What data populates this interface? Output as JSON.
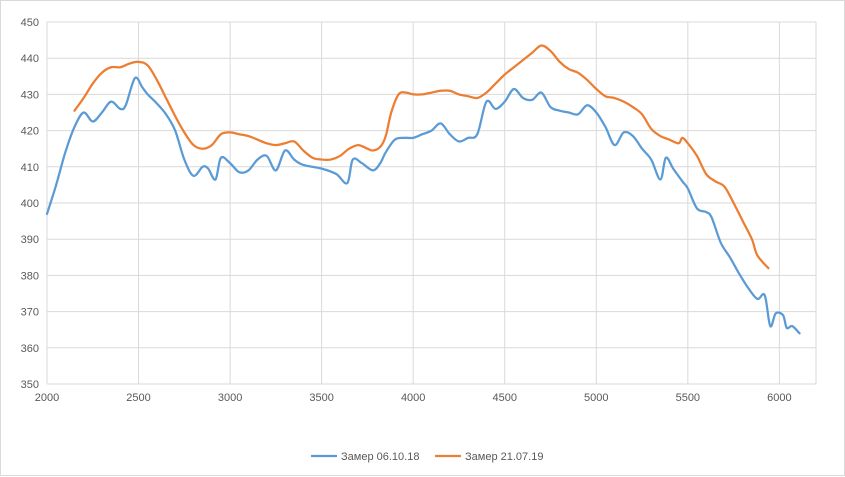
{
  "chart_data": {
    "type": "line",
    "title": "",
    "xlabel": "",
    "ylabel": "",
    "xlim": [
      2000,
      6200
    ],
    "ylim": [
      350,
      450
    ],
    "x_ticks": [
      2000,
      2500,
      3000,
      3500,
      4000,
      4500,
      5000,
      5500,
      6000
    ],
    "y_ticks": [
      350,
      360,
      370,
      380,
      390,
      400,
      410,
      420,
      430,
      440,
      450
    ],
    "grid": "vertical and horizontal",
    "legend_position": "bottom",
    "series": [
      {
        "name": "Замер 06.10.18",
        "color": "#5b9bd5",
        "points": [
          [
            2000,
            397
          ],
          [
            2050,
            405
          ],
          [
            2100,
            414
          ],
          [
            2150,
            421
          ],
          [
            2200,
            425
          ],
          [
            2250,
            422.5
          ],
          [
            2300,
            425
          ],
          [
            2350,
            428
          ],
          [
            2400,
            426
          ],
          [
            2430,
            427
          ],
          [
            2480,
            434.5
          ],
          [
            2520,
            432
          ],
          [
            2550,
            430
          ],
          [
            2600,
            427.5
          ],
          [
            2650,
            424.5
          ],
          [
            2700,
            420
          ],
          [
            2750,
            412
          ],
          [
            2800,
            407.5
          ],
          [
            2850,
            410
          ],
          [
            2880,
            409.5
          ],
          [
            2920,
            406.5
          ],
          [
            2950,
            412.5
          ],
          [
            3000,
            411
          ],
          [
            3050,
            408.5
          ],
          [
            3100,
            409
          ],
          [
            3150,
            412
          ],
          [
            3200,
            413
          ],
          [
            3250,
            409
          ],
          [
            3300,
            414.5
          ],
          [
            3350,
            412
          ],
          [
            3400,
            410.5
          ],
          [
            3500,
            409.5
          ],
          [
            3580,
            408
          ],
          [
            3640,
            405.5
          ],
          [
            3670,
            412
          ],
          [
            3720,
            411
          ],
          [
            3780,
            409
          ],
          [
            3820,
            411
          ],
          [
            3850,
            414
          ],
          [
            3900,
            417.5
          ],
          [
            3950,
            418
          ],
          [
            4000,
            418
          ],
          [
            4050,
            419
          ],
          [
            4100,
            420
          ],
          [
            4150,
            422
          ],
          [
            4200,
            419
          ],
          [
            4250,
            417
          ],
          [
            4300,
            418
          ],
          [
            4350,
            419
          ],
          [
            4400,
            428
          ],
          [
            4450,
            426
          ],
          [
            4500,
            428
          ],
          [
            4550,
            431.5
          ],
          [
            4600,
            429
          ],
          [
            4650,
            428.5
          ],
          [
            4700,
            430.5
          ],
          [
            4750,
            426.5
          ],
          [
            4800,
            425.5
          ],
          [
            4850,
            425
          ],
          [
            4900,
            424.5
          ],
          [
            4950,
            427
          ],
          [
            5000,
            425
          ],
          [
            5050,
            421
          ],
          [
            5100,
            416
          ],
          [
            5150,
            419.5
          ],
          [
            5200,
            418.5
          ],
          [
            5250,
            415
          ],
          [
            5300,
            412
          ],
          [
            5350,
            406.5
          ],
          [
            5380,
            412.5
          ],
          [
            5420,
            409.5
          ],
          [
            5470,
            406
          ],
          [
            5500,
            404
          ],
          [
            5550,
            398.5
          ],
          [
            5600,
            397.5
          ],
          [
            5630,
            396
          ],
          [
            5680,
            389
          ],
          [
            5730,
            385
          ],
          [
            5780,
            380.5
          ],
          [
            5830,
            376.5
          ],
          [
            5880,
            373.5
          ],
          [
            5920,
            374.5
          ],
          [
            5950,
            366
          ],
          [
            5980,
            369.5
          ],
          [
            6020,
            369
          ],
          [
            6040,
            365.5
          ],
          [
            6070,
            366
          ],
          [
            6110,
            364
          ]
        ]
      },
      {
        "name": "Замер 21.07.19",
        "color": "#ed7d31",
        "points": [
          [
            2150,
            425.5
          ],
          [
            2200,
            429
          ],
          [
            2250,
            433
          ],
          [
            2300,
            436
          ],
          [
            2350,
            437.5
          ],
          [
            2400,
            437.5
          ],
          [
            2450,
            438.5
          ],
          [
            2500,
            439
          ],
          [
            2550,
            438
          ],
          [
            2600,
            434
          ],
          [
            2650,
            429
          ],
          [
            2700,
            424
          ],
          [
            2750,
            419.5
          ],
          [
            2800,
            416
          ],
          [
            2850,
            415
          ],
          [
            2900,
            416
          ],
          [
            2950,
            419
          ],
          [
            3000,
            419.5
          ],
          [
            3050,
            419
          ],
          [
            3100,
            418.5
          ],
          [
            3150,
            417.5
          ],
          [
            3200,
            416.5
          ],
          [
            3250,
            416
          ],
          [
            3300,
            416.5
          ],
          [
            3350,
            417
          ],
          [
            3400,
            414.5
          ],
          [
            3450,
            412.5
          ],
          [
            3500,
            412
          ],
          [
            3550,
            412
          ],
          [
            3600,
            413
          ],
          [
            3650,
            415
          ],
          [
            3700,
            416
          ],
          [
            3750,
            415
          ],
          [
            3780,
            414.5
          ],
          [
            3820,
            415.5
          ],
          [
            3850,
            418.5
          ],
          [
            3880,
            425
          ],
          [
            3920,
            430
          ],
          [
            3960,
            430.5
          ],
          [
            4000,
            430
          ],
          [
            4050,
            430
          ],
          [
            4100,
            430.5
          ],
          [
            4150,
            431
          ],
          [
            4200,
            431
          ],
          [
            4250,
            430
          ],
          [
            4300,
            429.5
          ],
          [
            4350,
            429
          ],
          [
            4400,
            430.5
          ],
          [
            4450,
            433
          ],
          [
            4500,
            435.5
          ],
          [
            4550,
            437.5
          ],
          [
            4600,
            439.5
          ],
          [
            4650,
            441.5
          ],
          [
            4700,
            443.5
          ],
          [
            4750,
            442
          ],
          [
            4800,
            439
          ],
          [
            4850,
            437
          ],
          [
            4900,
            436
          ],
          [
            4950,
            434
          ],
          [
            5000,
            431.5
          ],
          [
            5050,
            429.5
          ],
          [
            5100,
            429
          ],
          [
            5150,
            428
          ],
          [
            5200,
            426.5
          ],
          [
            5250,
            424.5
          ],
          [
            5300,
            420.5
          ],
          [
            5350,
            418.5
          ],
          [
            5400,
            417.5
          ],
          [
            5450,
            416.5
          ],
          [
            5470,
            418
          ],
          [
            5500,
            416.5
          ],
          [
            5550,
            413
          ],
          [
            5600,
            408
          ],
          [
            5650,
            406
          ],
          [
            5700,
            404.5
          ],
          [
            5750,
            400
          ],
          [
            5800,
            395
          ],
          [
            5850,
            390
          ],
          [
            5880,
            385.5
          ],
          [
            5940,
            382
          ]
        ]
      }
    ]
  }
}
